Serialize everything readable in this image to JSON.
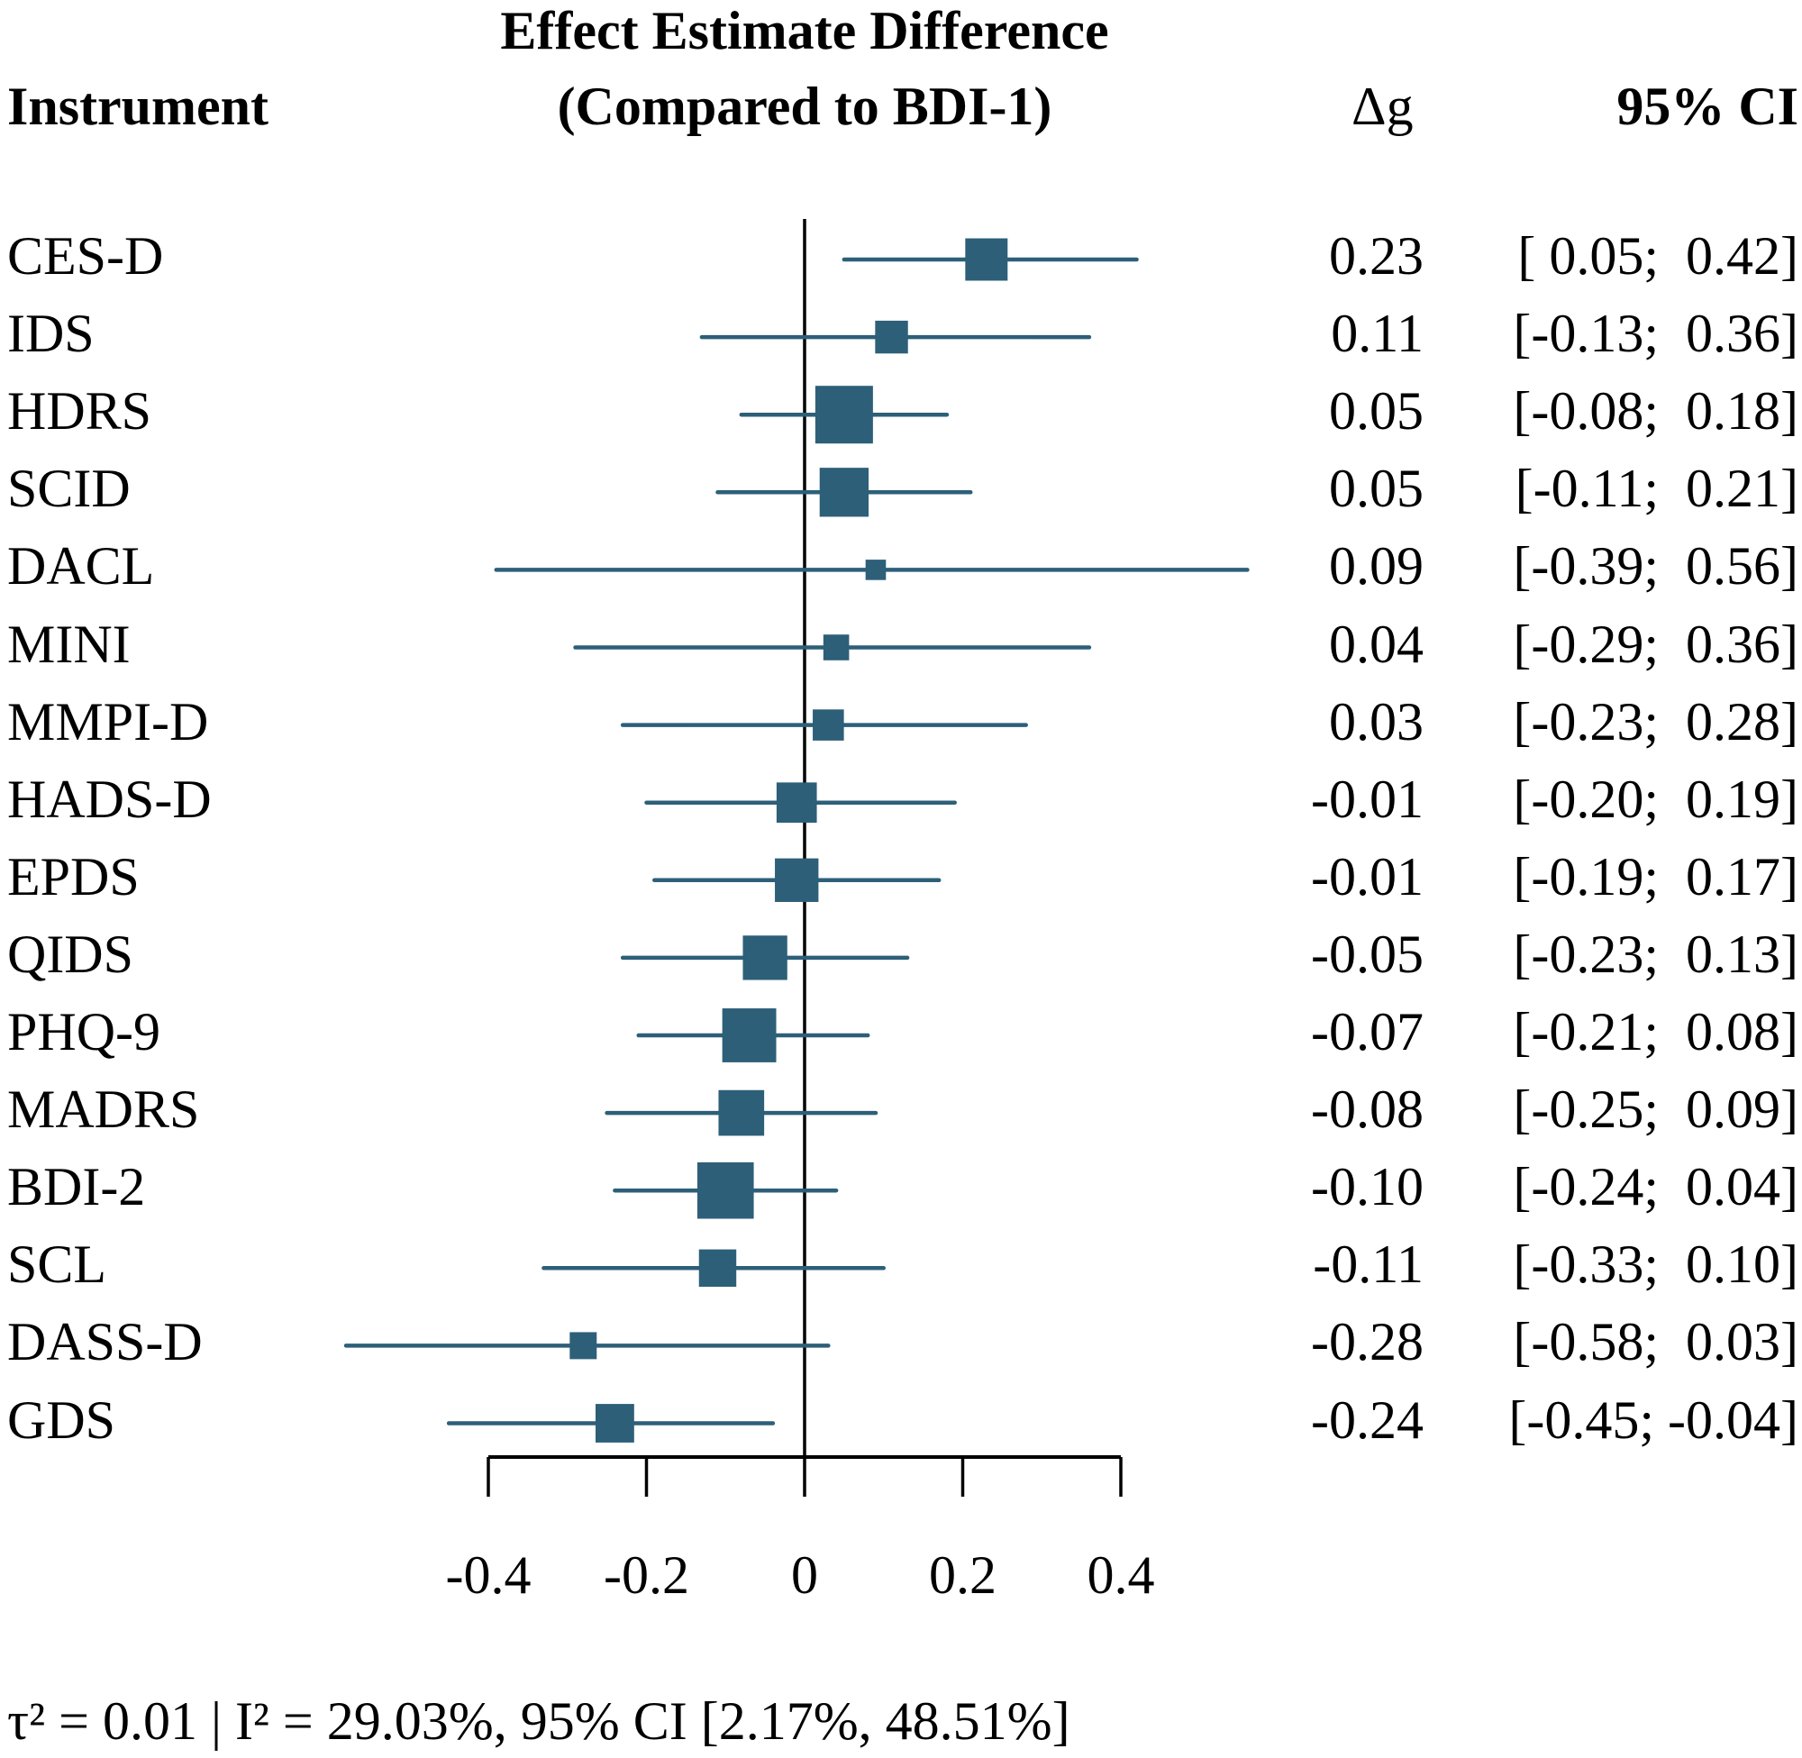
{
  "headers": {
    "instrument": "Instrument",
    "title_line1": "Effect Estimate Difference",
    "title_line2": "(Compared to BDI-1)",
    "delta_g": "Δg",
    "ci": "95% CI"
  },
  "footer": "τ² = 0.01 | I² = 29.03%, 95% CI [2.17%, 48.51%]",
  "colors": {
    "marker": "#2d5f79",
    "axis": "#000000"
  },
  "chart_data": {
    "type": "forest",
    "title": "Effect Estimate Difference (Compared to BDI-1)",
    "xlabel": "",
    "ylabel": "Instrument",
    "xlim": [
      -0.4,
      0.4
    ],
    "reference_line": 0,
    "x_ticks": [
      -0.4,
      -0.2,
      0,
      0.2,
      0.4
    ],
    "x_tick_labels": [
      "-0.4",
      "-0.2",
      "0",
      "0.2",
      "0.4"
    ],
    "grid": false,
    "rows": [
      {
        "label": "CES-D",
        "estimate": 0.23,
        "lower": 0.05,
        "upper": 0.42,
        "estimate_text": "0.23",
        "ci_text": "[ 0.05;  0.42]",
        "relative_weight": 0.63
      },
      {
        "label": "IDS",
        "estimate": 0.11,
        "lower": -0.13,
        "upper": 0.36,
        "estimate_text": "0.11",
        "ci_text": "[-0.13;  0.36]",
        "relative_weight": 0.4
      },
      {
        "label": "HDRS",
        "estimate": 0.05,
        "lower": -0.08,
        "upper": 0.18,
        "estimate_text": "0.05",
        "ci_text": "[-0.08;  0.18]",
        "relative_weight": 1.0
      },
      {
        "label": "SCID",
        "estimate": 0.05,
        "lower": -0.11,
        "upper": 0.21,
        "estimate_text": "0.05",
        "ci_text": "[-0.11;  0.21]",
        "relative_weight": 0.79
      },
      {
        "label": "DACL",
        "estimate": 0.09,
        "lower": -0.39,
        "upper": 0.56,
        "estimate_text": "0.09",
        "ci_text": "[-0.39;  0.56]",
        "relative_weight": 0.1
      },
      {
        "label": "MINI",
        "estimate": 0.04,
        "lower": -0.29,
        "upper": 0.36,
        "estimate_text": "0.04",
        "ci_text": "[-0.29;  0.36]",
        "relative_weight": 0.23
      },
      {
        "label": "MMPI-D",
        "estimate": 0.03,
        "lower": -0.23,
        "upper": 0.28,
        "estimate_text": "0.03",
        "ci_text": "[-0.23;  0.28]",
        "relative_weight": 0.36
      },
      {
        "label": "HADS-D",
        "estimate": -0.01,
        "lower": -0.2,
        "upper": 0.19,
        "estimate_text": "-0.01",
        "ci_text": "[-0.20;  0.19]",
        "relative_weight": 0.58
      },
      {
        "label": "EPDS",
        "estimate": -0.01,
        "lower": -0.19,
        "upper": 0.17,
        "estimate_text": "-0.01",
        "ci_text": "[-0.19;  0.17]",
        "relative_weight": 0.66
      },
      {
        "label": "QIDS",
        "estimate": -0.05,
        "lower": -0.23,
        "upper": 0.13,
        "estimate_text": "-0.05",
        "ci_text": "[-0.23;  0.13]",
        "relative_weight": 0.68
      },
      {
        "label": "PHQ-9",
        "estimate": -0.07,
        "lower": -0.21,
        "upper": 0.08,
        "estimate_text": "-0.07",
        "ci_text": "[-0.21;  0.08]",
        "relative_weight": 0.91
      },
      {
        "label": "MADRS",
        "estimate": -0.08,
        "lower": -0.25,
        "upper": 0.09,
        "estimate_text": "-0.08",
        "ci_text": "[-0.25;  0.09]",
        "relative_weight": 0.71
      },
      {
        "label": "BDI-2",
        "estimate": -0.1,
        "lower": -0.24,
        "upper": 0.04,
        "estimate_text": "-0.10",
        "ci_text": "[-0.24;  0.04]",
        "relative_weight": 0.97
      },
      {
        "label": "SCL",
        "estimate": -0.11,
        "lower": -0.33,
        "upper": 0.1,
        "estimate_text": "-0.11",
        "ci_text": "[-0.33;  0.10]",
        "relative_weight": 0.51
      },
      {
        "label": "DASS-D",
        "estimate": -0.28,
        "lower": -0.58,
        "upper": 0.03,
        "estimate_text": "-0.28",
        "ci_text": "[-0.58;  0.03]",
        "relative_weight": 0.26
      },
      {
        "label": "GDS",
        "estimate": -0.24,
        "lower": -0.45,
        "upper": -0.04,
        "estimate_text": "-0.24",
        "ci_text": "[-0.45; -0.04]",
        "relative_weight": 0.54
      }
    ],
    "heterogeneity": {
      "tau2": 0.01,
      "I2_percent": 29.03,
      "I2_ci_percent": [
        2.17,
        48.51
      ]
    }
  }
}
